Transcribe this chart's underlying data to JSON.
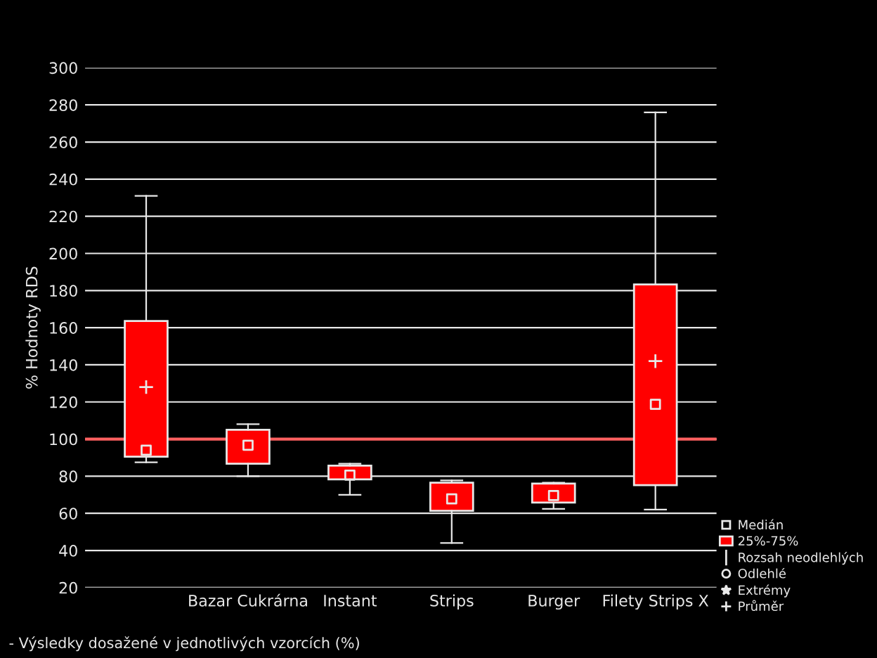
{
  "chart_data": {
    "type": "box",
    "ylabel": "% Hodnoty RDS",
    "categories": [
      null,
      "Bazar Cukrárna",
      "Instant",
      "Strips",
      "Burger",
      "Filety Strips X"
    ],
    "series": [
      {
        "name": "25%-75%",
        "color": "#ff0000",
        "boxes": [
          {
            "low": 87.5,
            "q1": 90.5,
            "median": 94,
            "q3": 163.6,
            "high": 231,
            "mean": 128
          },
          {
            "low": 80,
            "q1": 86.7,
            "median": 96.7,
            "q3": 105,
            "high": 108
          },
          {
            "low": 70,
            "q1": 78.3,
            "median": 80.6,
            "q3": 85.7,
            "high": 86.7
          },
          {
            "low": 44,
            "q1": 61.4,
            "median": 67.8,
            "q3": 76.5,
            "high": 77.7
          },
          {
            "low": 62.4,
            "q1": 65.8,
            "median": 69.6,
            "q3": 76,
            "high": 76.5
          },
          {
            "low": 62,
            "q1": 75.2,
            "median": 118.7,
            "q3": 183.3,
            "high": 276,
            "mean": 142
          }
        ]
      }
    ],
    "ylim": [
      20,
      300
    ],
    "yticks": [
      20,
      40,
      60,
      80,
      100,
      120,
      140,
      160,
      180,
      200,
      220,
      240,
      260,
      280,
      300
    ],
    "grid": "y",
    "ref_lines": [
      {
        "axis": "y",
        "value": 100,
        "color": "#ff6060"
      }
    ],
    "legend": "bottom right",
    "annotations": [
      "- Výsledky dosažené v jednotlivých vzorcích (%)",
      "Medián",
      "Rozsah neodlehlých",
      "Odlehlé",
      "Extrémy",
      "Průměr"
    ]
  }
}
